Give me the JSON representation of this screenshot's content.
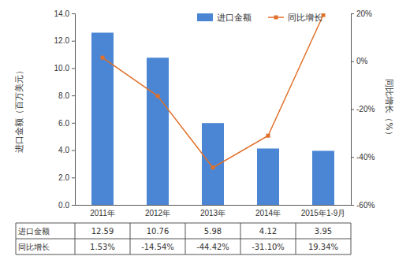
{
  "chart_data": {
    "type": "bar",
    "categories": [
      "2011年",
      "2012年",
      "2013年",
      "2014年",
      "2015年1-9月"
    ],
    "series": [
      {
        "name": "进口金额",
        "type": "bar",
        "color": "#4a86d4",
        "axis": "y",
        "values": [
          12.59,
          10.76,
          5.98,
          4.12,
          3.95
        ]
      },
      {
        "name": "同比增长",
        "type": "line",
        "color": "#e0702a",
        "marker": "square",
        "axis": "y2",
        "values": [
          1.53,
          -14.54,
          -44.42,
          -31.1,
          19.34
        ],
        "value_labels": [
          "1.53%",
          "-14.54%",
          "-44.42%",
          "-31.10%",
          "19.34%"
        ]
      }
    ],
    "y_label": "进口金额（百万美元）",
    "y2_label": "同比增长（%）",
    "ylim": [
      0,
      14
    ],
    "yticks": [
      {
        "value": 0,
        "label": "0.0"
      },
      {
        "value": 2,
        "label": "2.0"
      },
      {
        "value": 4,
        "label": "4.0"
      },
      {
        "value": 6,
        "label": "6.0"
      },
      {
        "value": 8,
        "label": "8.0"
      },
      {
        "value": 10,
        "label": "10.0"
      },
      {
        "value": 12,
        "label": "12.0"
      },
      {
        "value": 14,
        "label": "14.0"
      }
    ],
    "y2lim": [
      -60,
      20
    ],
    "y2ticks": [
      {
        "value": -60,
        "label": "-60%"
      },
      {
        "value": -40,
        "label": "-40%"
      },
      {
        "value": -20,
        "label": "-20%"
      },
      {
        "value": 0,
        "label": "0%"
      },
      {
        "value": 20,
        "label": "20%"
      }
    ],
    "legend": "top-right",
    "grid": false
  }
}
